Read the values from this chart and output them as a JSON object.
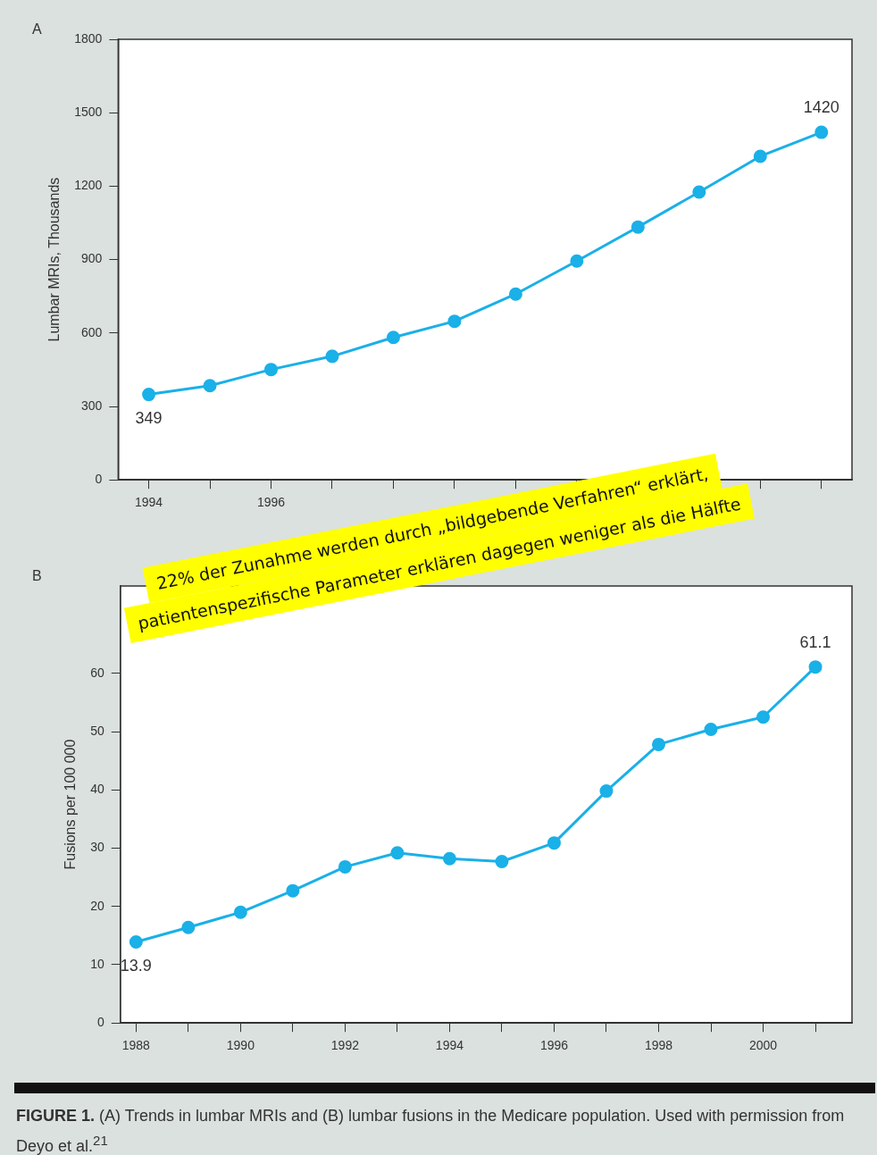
{
  "chart_data": [
    {
      "type": "line",
      "ylabel": "Lumbar MRIs, Thousands",
      "color": "#1ab0e8",
      "marker": "circle",
      "grid": false,
      "legend": false,
      "x": [
        1994,
        1995,
        1996,
        1997,
        1998,
        1999,
        2000,
        2001,
        2002,
        2003,
        2004,
        2005
      ],
      "values": [
        349,
        385,
        451,
        505,
        582,
        648,
        759,
        894,
        1033,
        1176,
        1322,
        1420
      ],
      "xlim": [
        1993.5,
        2005.5
      ],
      "xticks": [
        1994,
        {
          "value": 1995,
          "label": null
        },
        1996,
        {
          "value": 1997,
          "label": null
        },
        {
          "value": 1998,
          "label": null
        },
        {
          "value": 1999,
          "label": null
        },
        {
          "value": 2000,
          "label": null
        },
        {
          "value": 2001,
          "label": null
        },
        {
          "value": 2002,
          "label": null
        },
        {
          "value": 2003,
          "label": null
        },
        {
          "value": 2004,
          "label": null
        },
        {
          "value": 2005,
          "label": null
        }
      ],
      "ylim": [
        0,
        1800
      ],
      "yticks": [
        0,
        300,
        600,
        900,
        1200,
        1500,
        1800
      ],
      "annotations": [
        "A",
        "22% der Zunahme werden durch „bildgebende Verfahren“ erklärt, patientenspezifische Parameter erklären dagegen weniger als die Hälfte",
        {
          "text": "349",
          "x": 1994,
          "y": 349
        },
        {
          "text": "1420",
          "x": 2005,
          "y": 1420
        }
      ]
    },
    {
      "type": "line",
      "ylabel": "Fusions per 100 000",
      "color": "#1ab0e8",
      "marker": "circle",
      "grid": false,
      "legend": false,
      "x": [
        1988,
        1989,
        1990,
        1991,
        1992,
        1993,
        1994,
        1995,
        1996,
        1997,
        1998,
        1999,
        2000,
        2001
      ],
      "values": [
        13.9,
        16.4,
        19.0,
        22.7,
        26.8,
        29.2,
        28.2,
        27.7,
        30.9,
        39.8,
        47.8,
        50.4,
        52.5,
        61.1
      ],
      "xlim": [
        1987.7,
        2001.7
      ],
      "xticks": [
        1988,
        {
          "value": 1989,
          "label": null
        },
        1990,
        {
          "value": 1991,
          "label": null
        },
        1992,
        {
          "value": 1993,
          "label": null
        },
        1994,
        {
          "value": 1995,
          "label": null
        },
        1996,
        {
          "value": 1997,
          "label": null
        },
        1998,
        {
          "value": 1999,
          "label": null
        },
        2000,
        {
          "value": 2001,
          "label": null
        }
      ],
      "ylim": [
        0,
        75
      ],
      "yticks": [
        0,
        10,
        20,
        30,
        40,
        50,
        60
      ],
      "annotations": [
        "B",
        "FIGURE 1.",
        "(A) Trends in lumbar MRIs and (B) lumbar fusions in the Medicare population. Used with permission from Deyo et al.$^{21}$",
        {
          "text": "13.9",
          "x": 1988,
          "y": 13.9
        },
        {
          "text": "61.1",
          "x": 2001,
          "y": 61.1
        }
      ]
    }
  ]
}
